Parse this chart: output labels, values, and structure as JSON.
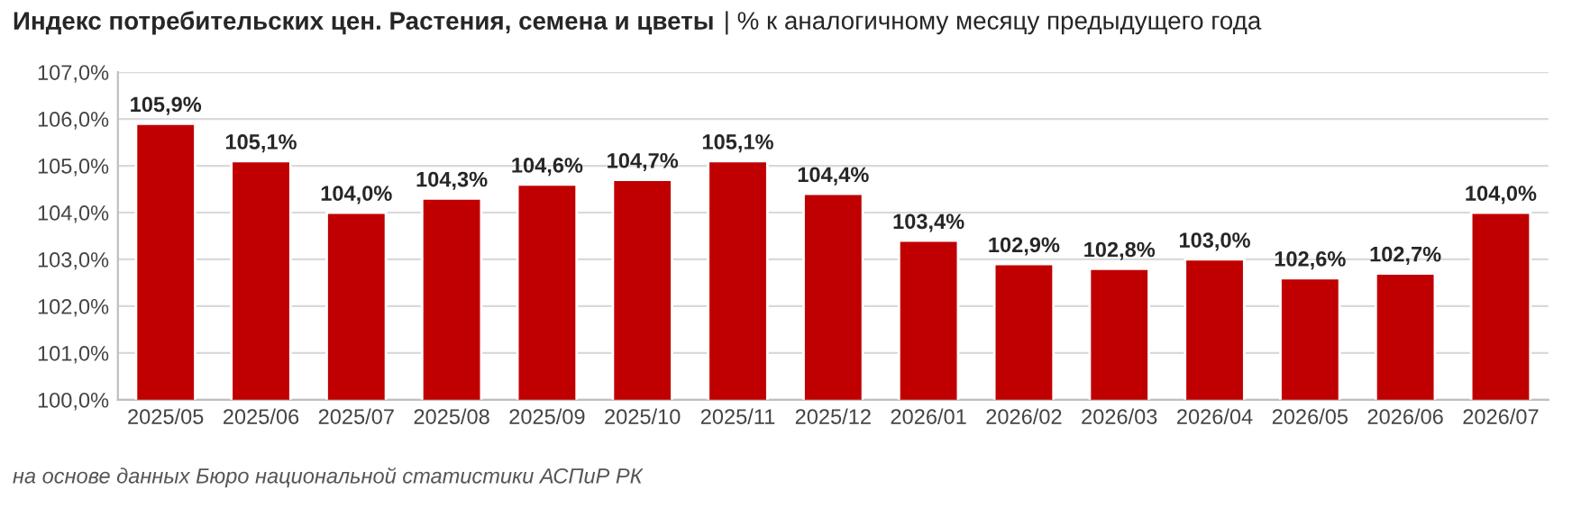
{
  "chart_data": {
    "type": "bar",
    "title": "Индекс потребительских цен. Растения, семена и цветы",
    "subtitle": "| % к аналогичному месяцу предыдущего года",
    "categories": [
      "2025/05",
      "2025/06",
      "2025/07",
      "2025/08",
      "2025/09",
      "2025/10",
      "2025/11",
      "2025/12",
      "2026/01",
      "2026/02",
      "2026/03",
      "2026/04",
      "2026/05",
      "2026/06",
      "2026/07"
    ],
    "values": [
      105.9,
      105.1,
      104.0,
      104.3,
      104.6,
      104.7,
      105.1,
      104.4,
      103.4,
      102.9,
      102.8,
      103.0,
      102.6,
      102.7,
      104.0
    ],
    "value_labels": [
      "105,9%",
      "105,1%",
      "104,0%",
      "104,3%",
      "104,6%",
      "104,7%",
      "105,1%",
      "104,4%",
      "103,4%",
      "102,9%",
      "102,8%",
      "103,0%",
      "102,6%",
      "102,7%",
      "104,0%"
    ],
    "color": "#c00000",
    "ylim": [
      100,
      107
    ],
    "yticks": [
      {
        "value": 100,
        "label": "100,0%"
      },
      {
        "value": 101,
        "label": "101,0%"
      },
      {
        "value": 102,
        "label": "102,0%"
      },
      {
        "value": 103,
        "label": "103,0%"
      },
      {
        "value": 104,
        "label": "104,0%"
      },
      {
        "value": 105,
        "label": "105,0%"
      },
      {
        "value": 106,
        "label": "106,0%"
      },
      {
        "value": 107,
        "label": "107,0%"
      }
    ],
    "grid": "y",
    "annotations": [
      "на основе данных Бюро национальной статистики АСПиР РК"
    ]
  }
}
